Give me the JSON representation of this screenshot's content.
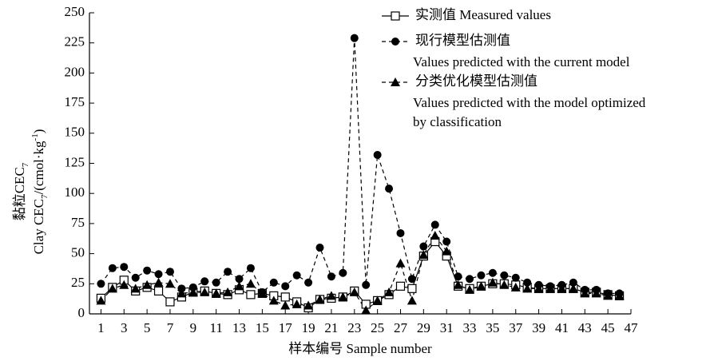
{
  "chart_data": {
    "type": "line",
    "xlabel": "样本编号 Sample number",
    "ylabel_lines": [
      [
        {
          "text": "黏粒CEC"
        },
        {
          "text": "7",
          "shift": "sub"
        }
      ],
      [
        {
          "text": "Clay CEC"
        },
        {
          "text": "7",
          "shift": "sub"
        },
        {
          "text": "/(cmol·kg"
        },
        {
          "text": "-1",
          "shift": "super"
        },
        {
          "text": ")"
        }
      ]
    ],
    "x": [
      1,
      2,
      3,
      4,
      5,
      6,
      7,
      8,
      9,
      10,
      11,
      12,
      13,
      14,
      15,
      16,
      17,
      18,
      19,
      20,
      21,
      22,
      23,
      24,
      25,
      26,
      27,
      28,
      29,
      30,
      31,
      32,
      33,
      34,
      35,
      36,
      37,
      38,
      39,
      40,
      41,
      42,
      43,
      44,
      45,
      46
    ],
    "xlim": [
      0,
      47
    ],
    "xticks": [
      1,
      3,
      5,
      7,
      9,
      11,
      13,
      15,
      17,
      19,
      21,
      23,
      25,
      27,
      29,
      31,
      33,
      35,
      37,
      39,
      41,
      43,
      45,
      47
    ],
    "ylim": [
      0,
      250
    ],
    "yticks": [
      0,
      25,
      50,
      75,
      100,
      125,
      150,
      175,
      200,
      225,
      250
    ],
    "series": [
      {
        "name": "实测值 Measured values",
        "color": "#000000",
        "marker": "square",
        "dashed": false,
        "values": [
          13,
          22,
          28,
          19,
          22,
          19,
          10,
          14,
          18,
          19,
          17,
          16,
          20,
          16,
          17,
          15,
          14,
          10,
          5,
          12,
          13,
          14,
          19,
          8,
          11,
          16,
          23,
          21,
          48,
          60,
          48,
          23,
          21,
          23,
          25,
          25,
          24,
          22,
          21,
          21,
          21,
          21,
          18,
          18,
          16,
          15
        ]
      },
      {
        "name": "现行模型估测值",
        "legend_lines": [
          "Values predicted with the current model"
        ],
        "color": "#000000",
        "marker": "circle",
        "dashed": true,
        "values": [
          25,
          38,
          39,
          30,
          36,
          33,
          35,
          21,
          22,
          27,
          26,
          35,
          29,
          38,
          18,
          26,
          23,
          32,
          26,
          55,
          31,
          34,
          229,
          24,
          132,
          104,
          67,
          29,
          56,
          74,
          60,
          31,
          29,
          32,
          34,
          32,
          30,
          26,
          24,
          23,
          24,
          26,
          20,
          20,
          17,
          17
        ]
      },
      {
        "name": "分类优化模型估测值",
        "legend_lines": [
          "Values predicted with the model optimized",
          "by classification"
        ],
        "color": "#000000",
        "marker": "triangle",
        "dashed": true,
        "values": [
          11,
          21,
          24,
          21,
          24,
          26,
          25,
          17,
          18,
          18,
          17,
          18,
          23,
          25,
          17,
          11,
          7,
          8,
          7,
          12,
          15,
          14,
          18,
          3,
          11,
          18,
          42,
          11,
          49,
          65,
          52,
          24,
          20,
          23,
          26,
          24,
          22,
          21,
          21,
          21,
          21,
          21,
          17,
          17,
          15,
          15
        ]
      }
    ]
  }
}
